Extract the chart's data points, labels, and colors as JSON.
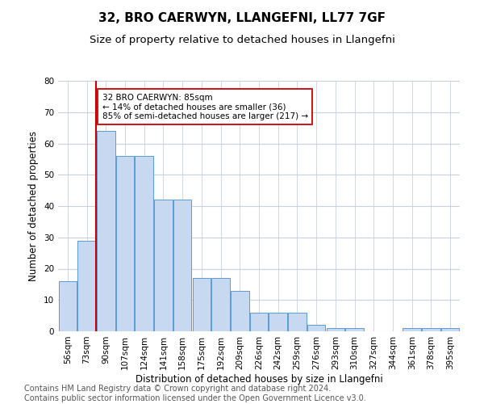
{
  "title1": "32, BRO CAERWYN, LLANGEFNI, LL77 7GF",
  "title2": "Size of property relative to detached houses in Llangefni",
  "xlabel": "Distribution of detached houses by size in Llangefni",
  "ylabel": "Number of detached properties",
  "categories": [
    "56sqm",
    "73sqm",
    "90sqm",
    "107sqm",
    "124sqm",
    "141sqm",
    "158sqm",
    "175sqm",
    "192sqm",
    "209sqm",
    "226sqm",
    "242sqm",
    "259sqm",
    "276sqm",
    "293sqm",
    "310sqm",
    "327sqm",
    "344sqm",
    "361sqm",
    "378sqm",
    "395sqm"
  ],
  "values": [
    16,
    29,
    64,
    56,
    56,
    42,
    42,
    17,
    17,
    13,
    6,
    6,
    6,
    2,
    1,
    1,
    0,
    0,
    1,
    1,
    1
  ],
  "bar_color": "#c6d9f0",
  "bar_edge_color": "#5b9bd5",
  "vline_x_index": 1.5,
  "vline_color": "#cc0000",
  "annotation_text": "32 BRO CAERWYN: 85sqm\n← 14% of detached houses are smaller (36)\n85% of semi-detached houses are larger (217) →",
  "annotation_box_color": "#ffffff",
  "annotation_box_edge": "#cc0000",
  "ylim": [
    0,
    80
  ],
  "yticks": [
    0,
    10,
    20,
    30,
    40,
    50,
    60,
    70,
    80
  ],
  "footer": "Contains HM Land Registry data © Crown copyright and database right 2024.\nContains public sector information licensed under the Open Government Licence v3.0.",
  "bg_color": "#ffffff",
  "grid_color": "#c8d0dc",
  "title1_fontsize": 11,
  "title2_fontsize": 9.5,
  "xlabel_fontsize": 8.5,
  "ylabel_fontsize": 8.5,
  "tick_fontsize": 7.5,
  "footer_fontsize": 7,
  "annot_fontsize": 7.5
}
